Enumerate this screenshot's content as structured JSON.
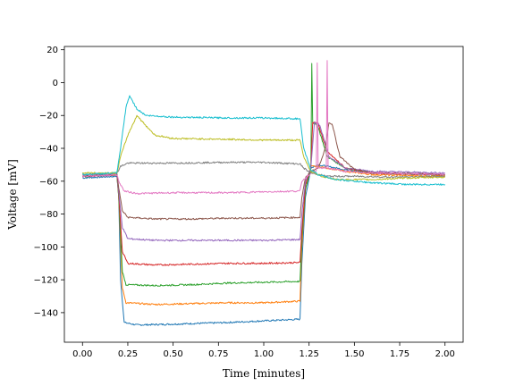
{
  "chart_data": {
    "type": "line",
    "title": "",
    "xlabel": "Time [minutes]",
    "ylabel": "Voltage [mV]",
    "xlim": [
      -0.1,
      2.1
    ],
    "ylim": [
      -158,
      22
    ],
    "grid": false,
    "legend": "none",
    "x_ticks": [
      0.0,
      0.25,
      0.5,
      0.75,
      1.0,
      1.25,
      1.5,
      1.75,
      2.0
    ],
    "x_tick_labels": [
      "0.00",
      "0.25",
      "0.50",
      "0.75",
      "1.00",
      "1.25",
      "1.50",
      "1.75",
      "2.00"
    ],
    "y_ticks": [
      20,
      0,
      -20,
      -40,
      -60,
      -80,
      -100,
      -120,
      -140
    ],
    "y_tick_labels": [
      "20",
      "0",
      "−20",
      "−40",
      "−60",
      "−80",
      "−100",
      "−120",
      "−140"
    ],
    "pulse_window": [
      0.2,
      1.2
    ],
    "series": [
      {
        "color": "#1f77b4",
        "points": [
          [
            0.0,
            -58
          ],
          [
            0.19,
            -57
          ],
          [
            0.2,
            -70
          ],
          [
            0.21,
            -120
          ],
          [
            0.23,
            -146
          ],
          [
            0.3,
            -147.5
          ],
          [
            0.5,
            -147
          ],
          [
            0.8,
            -146
          ],
          [
            1.0,
            -145
          ],
          [
            1.2,
            -144
          ],
          [
            1.21,
            -110
          ],
          [
            1.23,
            -70
          ],
          [
            1.26,
            -52
          ],
          [
            1.3,
            -50
          ],
          [
            1.45,
            -53
          ],
          [
            1.6,
            -55
          ],
          [
            2.0,
            -56
          ]
        ]
      },
      {
        "color": "#ff7f0e",
        "points": [
          [
            0.0,
            -57
          ],
          [
            0.19,
            -56
          ],
          [
            0.2,
            -70
          ],
          [
            0.22,
            -125
          ],
          [
            0.24,
            -134
          ],
          [
            0.4,
            -135
          ],
          [
            0.6,
            -134.5
          ],
          [
            0.8,
            -134
          ],
          [
            1.0,
            -134
          ],
          [
            1.2,
            -133
          ],
          [
            1.21,
            -100
          ],
          [
            1.23,
            -65
          ],
          [
            1.26,
            -51
          ],
          [
            1.3,
            -51
          ],
          [
            1.45,
            -54
          ],
          [
            1.6,
            -56
          ],
          [
            2.0,
            -57
          ]
        ]
      },
      {
        "color": "#2ca02c",
        "points": [
          [
            0.0,
            -57
          ],
          [
            0.19,
            -56
          ],
          [
            0.2,
            -70
          ],
          [
            0.22,
            -115
          ],
          [
            0.24,
            -123
          ],
          [
            0.4,
            -123.5
          ],
          [
            0.6,
            -123
          ],
          [
            0.8,
            -122
          ],
          [
            1.0,
            -121.5
          ],
          [
            1.2,
            -121
          ],
          [
            1.21,
            -95
          ],
          [
            1.23,
            -65
          ],
          [
            1.26,
            -52
          ],
          [
            1.265,
            12
          ],
          [
            1.27,
            -24
          ],
          [
            1.3,
            -27
          ],
          [
            1.35,
            -45
          ],
          [
            1.45,
            -52
          ],
          [
            1.6,
            -55
          ],
          [
            2.0,
            -56
          ]
        ]
      },
      {
        "color": "#d62728",
        "points": [
          [
            0.0,
            -57
          ],
          [
            0.19,
            -56
          ],
          [
            0.2,
            -68
          ],
          [
            0.22,
            -103
          ],
          [
            0.25,
            -110
          ],
          [
            0.4,
            -111
          ],
          [
            0.6,
            -110.5
          ],
          [
            0.8,
            -110
          ],
          [
            1.0,
            -110
          ],
          [
            1.2,
            -109.5
          ],
          [
            1.21,
            -90
          ],
          [
            1.23,
            -62
          ],
          [
            1.26,
            -52
          ],
          [
            1.27,
            -24
          ],
          [
            1.3,
            -25
          ],
          [
            1.35,
            -42
          ],
          [
            1.45,
            -52
          ],
          [
            1.6,
            -55
          ],
          [
            2.0,
            -56
          ]
        ]
      },
      {
        "color": "#9467bd",
        "points": [
          [
            0.0,
            -57
          ],
          [
            0.19,
            -56
          ],
          [
            0.2,
            -67
          ],
          [
            0.22,
            -88
          ],
          [
            0.25,
            -95
          ],
          [
            0.4,
            -96
          ],
          [
            0.6,
            -96
          ],
          [
            0.8,
            -96
          ],
          [
            1.0,
            -96
          ],
          [
            1.2,
            -95.5
          ],
          [
            1.21,
            -80
          ],
          [
            1.23,
            -60
          ],
          [
            1.26,
            -52
          ],
          [
            1.28,
            -24
          ],
          [
            1.31,
            -26
          ],
          [
            1.36,
            -45
          ],
          [
            1.45,
            -52
          ],
          [
            1.6,
            -54
          ],
          [
            2.0,
            -55
          ]
        ]
      },
      {
        "color": "#8c564b",
        "points": [
          [
            0.0,
            -57
          ],
          [
            0.19,
            -56
          ],
          [
            0.2,
            -64
          ],
          [
            0.22,
            -78
          ],
          [
            0.25,
            -82
          ],
          [
            0.4,
            -83
          ],
          [
            0.6,
            -83
          ],
          [
            0.8,
            -82.5
          ],
          [
            1.0,
            -82.5
          ],
          [
            1.2,
            -82
          ],
          [
            1.21,
            -70
          ],
          [
            1.23,
            -58
          ],
          [
            1.26,
            -54
          ],
          [
            1.3,
            -52
          ],
          [
            1.34,
            -40
          ],
          [
            1.36,
            -24
          ],
          [
            1.38,
            -26
          ],
          [
            1.42,
            -45
          ],
          [
            1.5,
            -53
          ],
          [
            1.6,
            -55
          ],
          [
            2.0,
            -56
          ]
        ]
      },
      {
        "color": "#e377c2",
        "points": [
          [
            0.0,
            -57
          ],
          [
            0.19,
            -56
          ],
          [
            0.2,
            -60
          ],
          [
            0.23,
            -66
          ],
          [
            0.3,
            -67.5
          ],
          [
            0.5,
            -67
          ],
          [
            0.8,
            -67
          ],
          [
            1.0,
            -66.5
          ],
          [
            1.2,
            -66
          ],
          [
            1.21,
            -60
          ],
          [
            1.25,
            -56
          ],
          [
            1.29,
            -54
          ],
          [
            1.295,
            12
          ],
          [
            1.3,
            -52
          ],
          [
            1.345,
            -52
          ],
          [
            1.35,
            13
          ],
          [
            1.355,
            -52
          ],
          [
            1.45,
            -54
          ],
          [
            1.6,
            -55
          ],
          [
            2.0,
            -56
          ]
        ]
      },
      {
        "color": "#7f7f7f",
        "points": [
          [
            0.0,
            -56
          ],
          [
            0.19,
            -55
          ],
          [
            0.21,
            -51
          ],
          [
            0.25,
            -49
          ],
          [
            0.5,
            -49
          ],
          [
            0.8,
            -48.5
          ],
          [
            1.0,
            -48.5
          ],
          [
            1.2,
            -49.5
          ],
          [
            1.22,
            -52
          ],
          [
            1.26,
            -55
          ],
          [
            1.35,
            -57
          ],
          [
            1.5,
            -57
          ],
          [
            1.7,
            -57.5
          ],
          [
            2.0,
            -57
          ]
        ]
      },
      {
        "color": "#bcbd22",
        "points": [
          [
            0.0,
            -55
          ],
          [
            0.19,
            -55
          ],
          [
            0.21,
            -45
          ],
          [
            0.25,
            -32
          ],
          [
            0.3,
            -20
          ],
          [
            0.34,
            -25
          ],
          [
            0.4,
            -32
          ],
          [
            0.5,
            -34
          ],
          [
            0.8,
            -34.5
          ],
          [
            1.0,
            -35
          ],
          [
            1.2,
            -35
          ],
          [
            1.22,
            -45
          ],
          [
            1.26,
            -54
          ],
          [
            1.32,
            -57
          ],
          [
            1.4,
            -59
          ],
          [
            1.6,
            -59
          ],
          [
            1.8,
            -58
          ],
          [
            2.0,
            -57.5
          ]
        ]
      },
      {
        "color": "#17becf",
        "points": [
          [
            0.0,
            -56
          ],
          [
            0.19,
            -55
          ],
          [
            0.21,
            -40
          ],
          [
            0.24,
            -15
          ],
          [
            0.26,
            -8
          ],
          [
            0.3,
            -16
          ],
          [
            0.35,
            -20
          ],
          [
            0.5,
            -21
          ],
          [
            0.8,
            -21.5
          ],
          [
            1.0,
            -21.5
          ],
          [
            1.2,
            -22
          ],
          [
            1.22,
            -40
          ],
          [
            1.26,
            -53
          ],
          [
            1.3,
            -56
          ],
          [
            1.4,
            -59
          ],
          [
            1.6,
            -61
          ],
          [
            1.8,
            -62
          ],
          [
            2.0,
            -62
          ]
        ]
      }
    ]
  }
}
